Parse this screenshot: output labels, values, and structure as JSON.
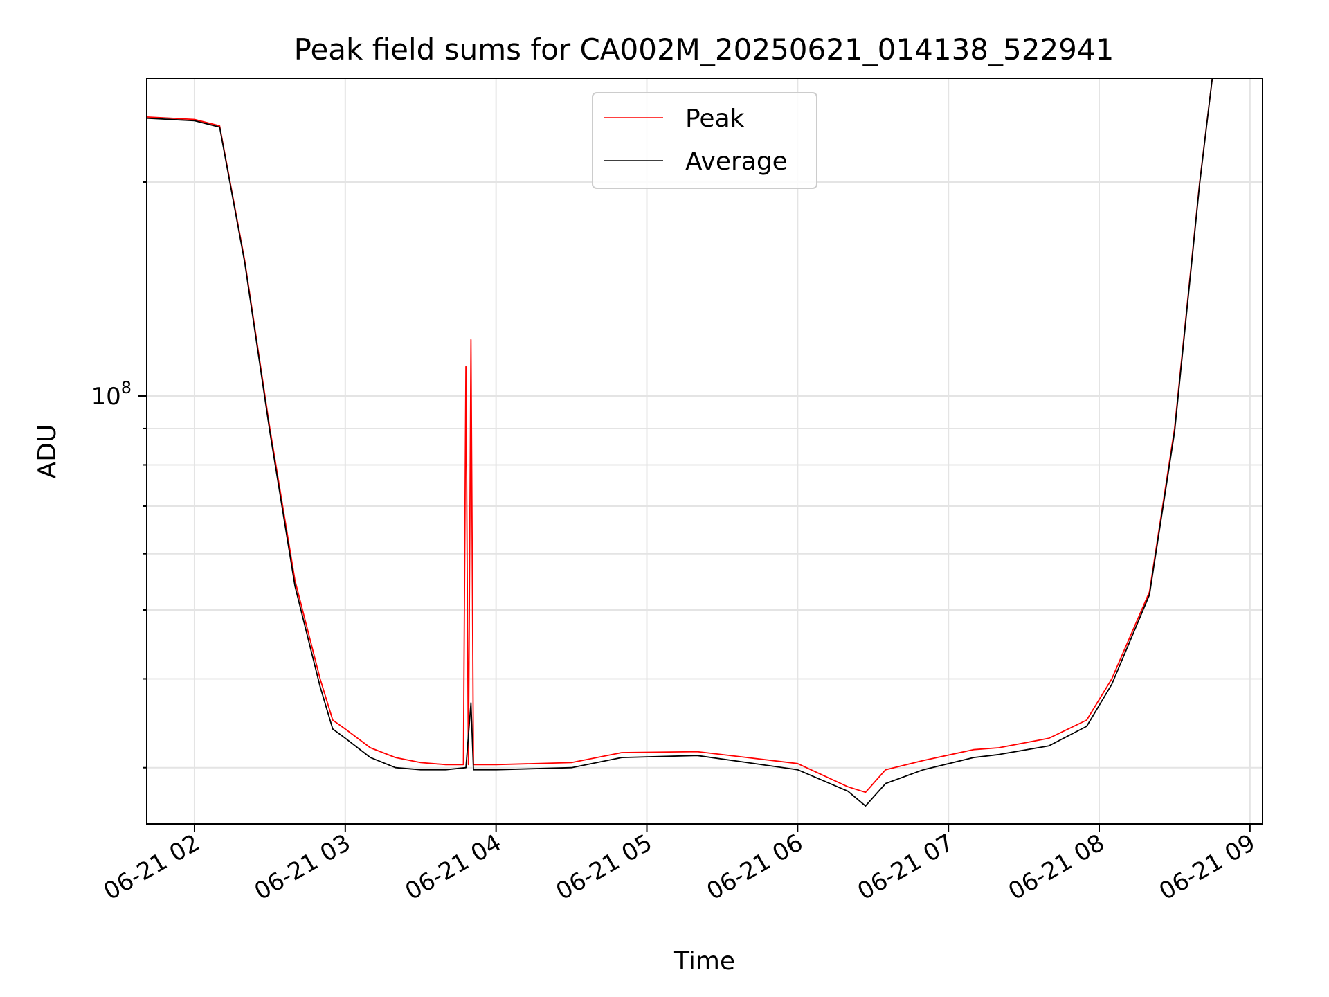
{
  "chart_data": {
    "type": "line",
    "title": "Peak field sums for CA002M_20250621_014138_522941",
    "xlabel": "Time",
    "ylabel": "ADU",
    "yscale": "log",
    "ylim": [
      25000000,
      280000000
    ],
    "xlim": [
      "2025-06-21 01:41",
      "2025-06-21 09:05"
    ],
    "grid": true,
    "legend_position": "top-center",
    "x_ticks": [
      "06-21 02",
      "06-21 03",
      "06-21 04",
      "06-21 05",
      "06-21 06",
      "06-21 07",
      "06-21 08",
      "06-21 09"
    ],
    "y_tick_labels": [
      {
        "base": "10",
        "exponent": "8",
        "value": 100000000
      }
    ],
    "series": [
      {
        "name": "Peak",
        "color": "#ff0000",
        "x": [
          "2025-06-21 01:41",
          "2025-06-21 02:00",
          "2025-06-21 02:10",
          "2025-06-21 02:20",
          "2025-06-21 02:30",
          "2025-06-21 02:40",
          "2025-06-21 02:50",
          "2025-06-21 02:55",
          "2025-06-21 03:00",
          "2025-06-21 03:10",
          "2025-06-21 03:20",
          "2025-06-21 03:30",
          "2025-06-21 03:40",
          "2025-06-21 03:47",
          "2025-06-21 03:48",
          "2025-06-21 03:49",
          "2025-06-21 03:50",
          "2025-06-21 03:51",
          "2025-06-21 04:00",
          "2025-06-21 04:30",
          "2025-06-21 04:50",
          "2025-06-21 05:20",
          "2025-06-21 05:40",
          "2025-06-21 06:00",
          "2025-06-21 06:20",
          "2025-06-21 06:27",
          "2025-06-21 06:35",
          "2025-06-21 06:50",
          "2025-06-21 07:10",
          "2025-06-21 07:20",
          "2025-06-21 07:40",
          "2025-06-21 07:55",
          "2025-06-21 08:05",
          "2025-06-21 08:20",
          "2025-06-21 08:30",
          "2025-06-21 08:40",
          "2025-06-21 08:45"
        ],
        "values": [
          247000000,
          245000000,
          240000000,
          155000000,
          90000000,
          55000000,
          40000000,
          35000000,
          34000000,
          32000000,
          31000000,
          30500000,
          30300000,
          30300000,
          110000000,
          30300000,
          120000000,
          30300000,
          30300000,
          30500000,
          31500000,
          31600000,
          31000000,
          30400000,
          28200000,
          27700000,
          29800000,
          30700000,
          31800000,
          32000000,
          33000000,
          35000000,
          40000000,
          53000000,
          90000000,
          200000000,
          280000000
        ]
      },
      {
        "name": "Average",
        "color": "#000000",
        "x": [
          "2025-06-21 01:41",
          "2025-06-21 02:00",
          "2025-06-21 02:10",
          "2025-06-21 02:20",
          "2025-06-21 02:30",
          "2025-06-21 02:40",
          "2025-06-21 02:50",
          "2025-06-21 02:55",
          "2025-06-21 03:00",
          "2025-06-21 03:10",
          "2025-06-21 03:20",
          "2025-06-21 03:30",
          "2025-06-21 03:40",
          "2025-06-21 03:48",
          "2025-06-21 03:50",
          "2025-06-21 03:51",
          "2025-06-21 04:00",
          "2025-06-21 04:30",
          "2025-06-21 04:50",
          "2025-06-21 05:20",
          "2025-06-21 05:40",
          "2025-06-21 06:00",
          "2025-06-21 06:20",
          "2025-06-21 06:27",
          "2025-06-21 06:35",
          "2025-06-21 06:50",
          "2025-06-21 07:10",
          "2025-06-21 07:20",
          "2025-06-21 07:40",
          "2025-06-21 07:55",
          "2025-06-21 08:05",
          "2025-06-21 08:20",
          "2025-06-21 08:30",
          "2025-06-21 08:40",
          "2025-06-21 08:45"
        ],
        "values": [
          246000000,
          244000000,
          239000000,
          154000000,
          89000000,
          54000000,
          39000000,
          34000000,
          33000000,
          31000000,
          30000000,
          29800000,
          29800000,
          30000000,
          37000000,
          29800000,
          29800000,
          30000000,
          31000000,
          31200000,
          30500000,
          29800000,
          27800000,
          26500000,
          28500000,
          29800000,
          31000000,
          31300000,
          32200000,
          34300000,
          39300000,
          52500000,
          89000000,
          199000000,
          280000000
        ]
      }
    ]
  }
}
